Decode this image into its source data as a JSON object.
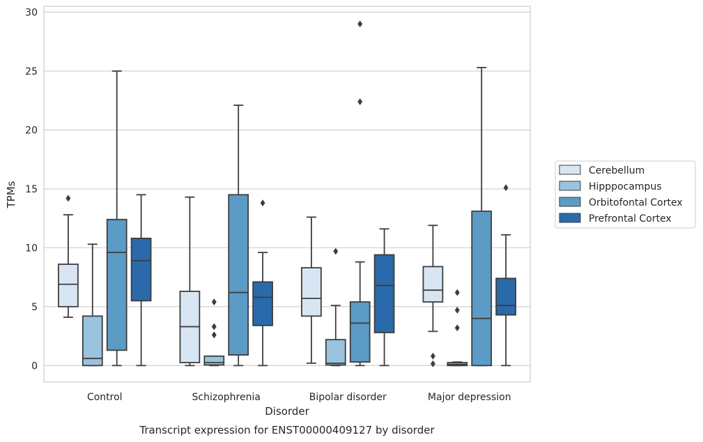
{
  "chart_data": {
    "type": "boxplot",
    "title": "",
    "caption": "Transcript expression for ENST00000409127 by disorder",
    "xlabel": "Disorder",
    "ylabel": "TPMs",
    "ylim": [
      -1.4,
      30.5
    ],
    "yticks": [
      0,
      5,
      10,
      15,
      20,
      25,
      30
    ],
    "grid": "horizontal",
    "legend_position": "right",
    "categories": [
      "Control",
      "Schizophrenia",
      "Bipolar disorder",
      "Major depression"
    ],
    "series": [
      {
        "name": "Cerebellum",
        "color": "#d8e6f3",
        "boxes": [
          {
            "whislo": 4.1,
            "q1": 5.0,
            "med": 6.9,
            "q3": 8.6,
            "whishi": 12.8,
            "fliers": [
              14.2
            ]
          },
          {
            "whislo": 0.0,
            "q1": 0.25,
            "med": 3.3,
            "q3": 6.3,
            "whishi": 14.3,
            "fliers": []
          },
          {
            "whislo": 0.2,
            "q1": 4.2,
            "med": 5.7,
            "q3": 8.3,
            "whishi": 12.6,
            "fliers": []
          },
          {
            "whislo": 2.9,
            "q1": 5.4,
            "med": 6.4,
            "q3": 8.4,
            "whishi": 11.9,
            "fliers": [
              0.8,
              0.15
            ]
          }
        ]
      },
      {
        "name": "Hipppocampus",
        "color": "#9ac3dd",
        "boxes": [
          {
            "whislo": 0.0,
            "q1": 0.0,
            "med": 0.6,
            "q3": 4.2,
            "whishi": 10.3,
            "fliers": []
          },
          {
            "whislo": 0.0,
            "q1": 0.05,
            "med": 0.25,
            "q3": 0.8,
            "whishi": 0.8,
            "fliers": [
              5.4,
              3.3,
              2.6
            ]
          },
          {
            "whislo": 0.0,
            "q1": 0.05,
            "med": 0.2,
            "q3": 2.2,
            "whishi": 5.1,
            "fliers": [
              9.7
            ]
          },
          {
            "whislo": 0.0,
            "q1": 0.0,
            "med": 0.1,
            "q3": 0.25,
            "whishi": 0.3,
            "fliers": [
              6.2,
              4.7,
              3.2
            ]
          }
        ]
      },
      {
        "name": "Orbitofontal Cortex",
        "color": "#5b9bc6",
        "boxes": [
          {
            "whislo": 0.0,
            "q1": 1.3,
            "med": 9.6,
            "q3": 12.4,
            "whishi": 25.0,
            "fliers": []
          },
          {
            "whislo": 0.0,
            "q1": 0.9,
            "med": 6.2,
            "q3": 14.5,
            "whishi": 22.1,
            "fliers": []
          },
          {
            "whislo": 0.0,
            "q1": 0.3,
            "med": 3.6,
            "q3": 5.4,
            "whishi": 8.8,
            "fliers": [
              29.0,
              22.4
            ]
          },
          {
            "whislo": 0.0,
            "q1": 0.0,
            "med": 4.0,
            "q3": 13.1,
            "whishi": 25.3,
            "fliers": []
          }
        ]
      },
      {
        "name": "Prefrontal Cortex",
        "color": "#2a6aaa",
        "boxes": [
          {
            "whislo": 0.0,
            "q1": 5.5,
            "med": 8.9,
            "q3": 10.8,
            "whishi": 14.5,
            "fliers": []
          },
          {
            "whislo": 0.0,
            "q1": 3.4,
            "med": 5.8,
            "q3": 7.1,
            "whishi": 9.6,
            "fliers": [
              13.8
            ]
          },
          {
            "whislo": 0.0,
            "q1": 2.8,
            "med": 6.8,
            "q3": 9.4,
            "whishi": 11.6,
            "fliers": []
          },
          {
            "whislo": 0.0,
            "q1": 4.3,
            "med": 5.1,
            "q3": 7.4,
            "whishi": 11.1,
            "fliers": [
              15.1
            ]
          }
        ]
      }
    ]
  },
  "colors": {
    "grid": "#cccccc",
    "frame": "#cccccc",
    "stroke": "#3d3d3d",
    "text": "#262626"
  }
}
